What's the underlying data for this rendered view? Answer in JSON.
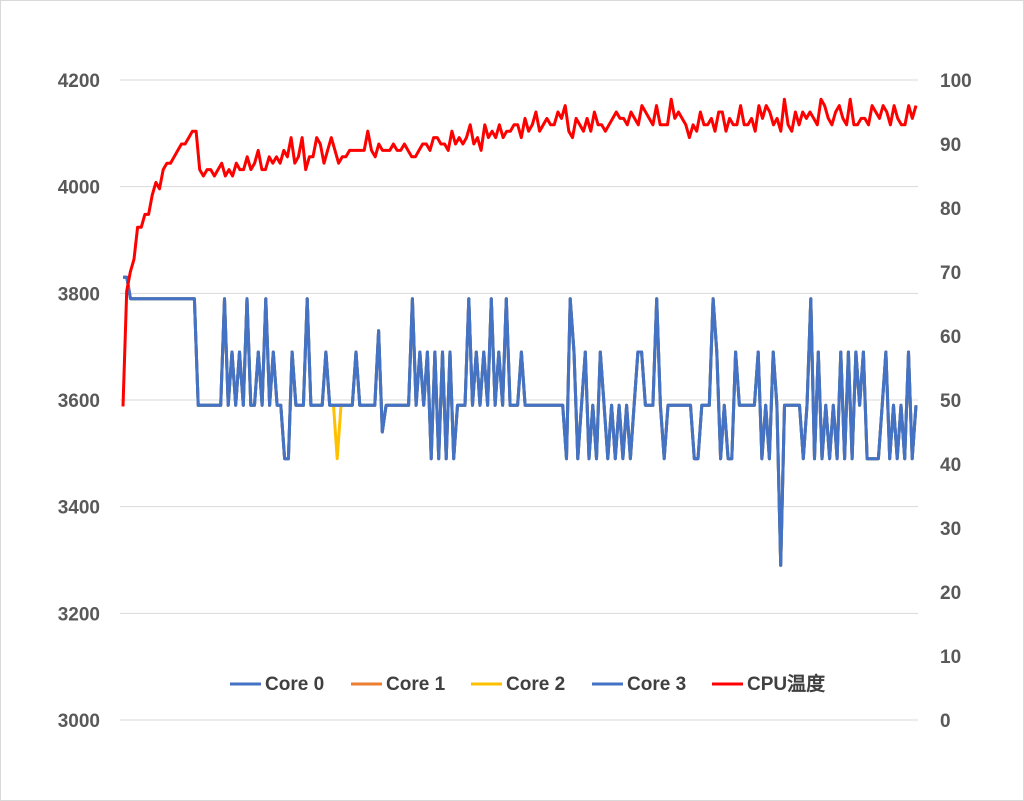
{
  "chart_data": {
    "type": "line",
    "title": "",
    "grid": true,
    "legend_position": "bottom-inside",
    "y_left": {
      "ylim": [
        3000,
        4200
      ],
      "ticks": [
        3000,
        3200,
        3400,
        3600,
        3800,
        4000,
        4200
      ],
      "tick_labels": [
        "3000",
        "3200",
        "3400",
        "3600",
        "3800",
        "4000",
        "4200"
      ]
    },
    "y_right": {
      "ylim": [
        0,
        100
      ],
      "ticks": [
        0,
        10,
        20,
        30,
        40,
        50,
        60,
        70,
        80,
        90,
        100
      ],
      "tick_labels": [
        "0",
        "10",
        "20",
        "30",
        "40",
        "50",
        "60",
        "70",
        "80",
        "90",
        "100"
      ]
    },
    "series": [
      {
        "name": "Core 0",
        "color": "#4472C4",
        "axis": "left",
        "values": [
          3830,
          3830,
          3790,
          3790,
          3790,
          3790,
          3790,
          3790,
          3790,
          3790,
          3790,
          3790,
          3790,
          3790,
          3790,
          3790,
          3790,
          3790,
          3790,
          3790,
          3590,
          3590,
          3590,
          3590,
          3590,
          3590,
          3590,
          3790,
          3590,
          3690,
          3590,
          3690,
          3590,
          3790,
          3590,
          3590,
          3690,
          3590,
          3790,
          3590,
          3690,
          3590,
          3590,
          3490,
          3490,
          3690,
          3590,
          3590,
          3590,
          3790,
          3590,
          3590,
          3590,
          3590,
          3690,
          3590,
          3590,
          3590,
          3590,
          3590,
          3590,
          3590,
          3690,
          3590,
          3590,
          3590,
          3590,
          3590,
          3730,
          3540,
          3590,
          3590,
          3590,
          3590,
          3590,
          3590,
          3590,
          3790,
          3590,
          3690,
          3590,
          3690,
          3490,
          3690,
          3490,
          3690,
          3490,
          3690,
          3490,
          3590,
          3590,
          3590,
          3790,
          3590,
          3690,
          3590,
          3690,
          3590,
          3790,
          3590,
          3690,
          3590,
          3790,
          3590,
          3590,
          3590,
          3690,
          3590,
          3590,
          3590,
          3590,
          3590,
          3590,
          3590,
          3590,
          3590,
          3590,
          3590,
          3490,
          3790,
          3690,
          3490,
          3590,
          3690,
          3490,
          3590,
          3490,
          3690,
          3590,
          3490,
          3590,
          3490,
          3590,
          3490,
          3590,
          3490,
          3590,
          3690,
          3690,
          3590,
          3590,
          3590,
          3790,
          3590,
          3490,
          3590,
          3590,
          3590,
          3590,
          3590,
          3590,
          3590,
          3490,
          3490,
          3590,
          3590,
          3590,
          3790,
          3690,
          3490,
          3590,
          3490,
          3490,
          3690,
          3590,
          3590,
          3590,
          3590,
          3590,
          3690,
          3490,
          3590,
          3490,
          3690,
          3590,
          3290,
          3590,
          3590,
          3590,
          3590,
          3590,
          3490,
          3590,
          3790,
          3490,
          3690,
          3490,
          3590,
          3490,
          3590,
          3490,
          3690,
          3490,
          3690,
          3490,
          3690,
          3590,
          3690,
          3490,
          3490,
          3490,
          3490,
          3590,
          3690,
          3490,
          3590,
          3490,
          3590,
          3490,
          3690,
          3490,
          3590
        ],
        "note": "Core 3 trace coincides with Core 0"
      },
      {
        "name": "Core 1",
        "color": "#ED7D31",
        "axis": "left",
        "values": [
          3830,
          3830,
          3790,
          3790,
          3790,
          3790,
          3790,
          3790,
          3790,
          3790,
          3790,
          3790,
          3790,
          3790,
          3790,
          3790,
          3790,
          3790,
          3790,
          3790,
          3590,
          3590,
          3590,
          3590,
          3590,
          3590,
          3590,
          3790,
          3590,
          3690,
          3590,
          3690,
          3590,
          3790,
          3590,
          3590,
          3690,
          3590,
          3790,
          3590,
          3690,
          3590,
          3590,
          3490,
          3490,
          3690,
          3590,
          3590,
          3590,
          3790,
          3590,
          3590,
          3590,
          3590,
          3690,
          3590,
          3590,
          3590,
          3590,
          3590,
          3590,
          3590,
          3690,
          3590,
          3590,
          3590,
          3590,
          3590,
          3730,
          3540,
          3590,
          3590,
          3590,
          3590,
          3590,
          3590,
          3590,
          3790,
          3590,
          3690,
          3590,
          3690,
          3490,
          3690,
          3490,
          3690,
          3490,
          3690,
          3490,
          3590,
          3590,
          3590,
          3790,
          3590,
          3690,
          3590,
          3690,
          3590,
          3790,
          3590,
          3690,
          3590,
          3790,
          3590,
          3590,
          3590,
          3690,
          3590,
          3590,
          3590,
          3590,
          3590,
          3590,
          3590,
          3590,
          3590,
          3590,
          3590,
          3490,
          3790,
          3690,
          3490,
          3590,
          3690,
          3490,
          3590,
          3490,
          3690,
          3590,
          3490,
          3590,
          3490,
          3590,
          3490,
          3590,
          3490,
          3590,
          3690,
          3690,
          3590,
          3590,
          3590,
          3790,
          3590,
          3490,
          3590,
          3590,
          3590,
          3590,
          3590,
          3590,
          3590,
          3490,
          3490,
          3590,
          3590,
          3590,
          3790,
          3690,
          3490,
          3590,
          3490,
          3490,
          3690,
          3590,
          3590,
          3590,
          3590,
          3590,
          3690,
          3490,
          3590,
          3490,
          3690,
          3590,
          3290,
          3590,
          3590,
          3590,
          3590,
          3590,
          3490,
          3590,
          3790,
          3490,
          3690,
          3490,
          3590,
          3490,
          3590,
          3490,
          3690,
          3490,
          3690,
          3490,
          3690,
          3590,
          3690,
          3490,
          3490,
          3490,
          3490,
          3590,
          3690,
          3490,
          3590,
          3490,
          3590,
          3490,
          3690,
          3490,
          3590
        ]
      },
      {
        "name": "Core 2",
        "color": "#FFC000",
        "axis": "left",
        "values": [
          3830,
          3830,
          3790,
          3790,
          3790,
          3790,
          3790,
          3790,
          3790,
          3790,
          3790,
          3790,
          3790,
          3790,
          3790,
          3790,
          3790,
          3790,
          3790,
          3790,
          3590,
          3590,
          3590,
          3590,
          3590,
          3590,
          3590,
          3790,
          3590,
          3690,
          3590,
          3690,
          3590,
          3790,
          3590,
          3590,
          3690,
          3590,
          3790,
          3590,
          3690,
          3590,
          3590,
          3490,
          3490,
          3690,
          3590,
          3590,
          3590,
          3790,
          3590,
          3590,
          3590,
          3590,
          3690,
          3590,
          3590,
          3490,
          3590,
          3590,
          3590,
          3590,
          3690,
          3590,
          3590,
          3590,
          3590,
          3590,
          3730,
          3540,
          3590,
          3590,
          3590,
          3590,
          3590,
          3590,
          3590,
          3790,
          3590,
          3690,
          3590,
          3690,
          3490,
          3690,
          3490,
          3690,
          3490,
          3690,
          3490,
          3590,
          3590,
          3590,
          3790,
          3590,
          3690,
          3590,
          3690,
          3590,
          3790,
          3590,
          3690,
          3590,
          3790,
          3590,
          3590,
          3590,
          3690,
          3590,
          3590,
          3590,
          3590,
          3590,
          3590,
          3590,
          3590,
          3590,
          3590,
          3590,
          3490,
          3790,
          3690,
          3490,
          3590,
          3690,
          3490,
          3590,
          3490,
          3690,
          3590,
          3490,
          3590,
          3490,
          3590,
          3490,
          3590,
          3490,
          3590,
          3690,
          3690,
          3590,
          3590,
          3590,
          3790,
          3590,
          3490,
          3590,
          3590,
          3590,
          3590,
          3590,
          3590,
          3590,
          3490,
          3490,
          3590,
          3590,
          3590,
          3790,
          3690,
          3490,
          3590,
          3490,
          3490,
          3690,
          3590,
          3590,
          3590,
          3590,
          3590,
          3690,
          3490,
          3590,
          3490,
          3690,
          3590,
          3290,
          3590,
          3590,
          3590,
          3590,
          3590,
          3490,
          3590,
          3790,
          3490,
          3690,
          3490,
          3590,
          3490,
          3590,
          3490,
          3690,
          3490,
          3690,
          3490,
          3690,
          3590,
          3690,
          3490,
          3490,
          3490,
          3490,
          3590,
          3690,
          3490,
          3590,
          3490,
          3590,
          3490,
          3690,
          3490,
          3590
        ]
      },
      {
        "name": "Core 3",
        "color": "#4472C4",
        "axis": "left",
        "values": [
          3830,
          3830,
          3790,
          3790,
          3790,
          3790,
          3790,
          3790,
          3790,
          3790,
          3790,
          3790,
          3790,
          3790,
          3790,
          3790,
          3790,
          3790,
          3790,
          3790,
          3590,
          3590,
          3590,
          3590,
          3590,
          3590,
          3590,
          3790,
          3590,
          3690,
          3590,
          3690,
          3590,
          3790,
          3590,
          3590,
          3690,
          3590,
          3790,
          3590,
          3690,
          3590,
          3590,
          3490,
          3490,
          3690,
          3590,
          3590,
          3590,
          3790,
          3590,
          3590,
          3590,
          3590,
          3690,
          3590,
          3590,
          3590,
          3590,
          3590,
          3590,
          3590,
          3690,
          3590,
          3590,
          3590,
          3590,
          3590,
          3730,
          3540,
          3590,
          3590,
          3590,
          3590,
          3590,
          3590,
          3590,
          3790,
          3590,
          3690,
          3590,
          3690,
          3490,
          3690,
          3490,
          3690,
          3490,
          3690,
          3490,
          3590,
          3590,
          3590,
          3790,
          3590,
          3690,
          3590,
          3690,
          3590,
          3790,
          3590,
          3690,
          3590,
          3790,
          3590,
          3590,
          3590,
          3690,
          3590,
          3590,
          3590,
          3590,
          3590,
          3590,
          3590,
          3590,
          3590,
          3590,
          3590,
          3490,
          3790,
          3690,
          3490,
          3590,
          3690,
          3490,
          3590,
          3490,
          3690,
          3590,
          3490,
          3590,
          3490,
          3590,
          3490,
          3590,
          3490,
          3590,
          3690,
          3690,
          3590,
          3590,
          3590,
          3790,
          3590,
          3490,
          3590,
          3590,
          3590,
          3590,
          3590,
          3590,
          3590,
          3490,
          3490,
          3590,
          3590,
          3590,
          3790,
          3690,
          3490,
          3590,
          3490,
          3490,
          3690,
          3590,
          3590,
          3590,
          3590,
          3590,
          3690,
          3490,
          3590,
          3490,
          3690,
          3590,
          3290,
          3590,
          3590,
          3590,
          3590,
          3590,
          3490,
          3590,
          3790,
          3490,
          3690,
          3490,
          3590,
          3490,
          3590,
          3490,
          3690,
          3490,
          3690,
          3490,
          3690,
          3590,
          3690,
          3490,
          3490,
          3490,
          3490,
          3590,
          3690,
          3490,
          3590,
          3490,
          3590,
          3490,
          3690,
          3490,
          3590
        ]
      },
      {
        "name": "CPU温度",
        "color": "#FF0000",
        "axis": "right",
        "values": [
          49,
          67,
          70,
          72,
          77,
          77,
          79,
          79,
          82,
          84,
          83,
          86,
          87,
          87,
          88,
          89,
          90,
          90,
          91,
          92,
          92,
          86,
          85,
          86,
          86,
          85,
          86,
          87,
          85,
          86,
          85,
          87,
          86,
          86,
          88,
          86,
          87,
          89,
          86,
          86,
          88,
          87,
          88,
          87,
          89,
          88,
          91,
          87,
          88,
          91,
          86,
          88,
          88,
          91,
          90,
          87,
          89,
          91,
          89,
          87,
          88,
          88,
          89,
          89,
          89,
          89,
          89,
          92,
          89,
          88,
          90,
          89,
          89,
          89,
          90,
          89,
          89,
          90,
          89,
          88,
          88,
          89,
          90,
          90,
          89,
          91,
          91,
          90,
          90,
          89,
          92,
          90,
          91,
          90,
          91,
          93,
          90,
          91,
          89,
          93,
          91,
          92,
          91,
          93,
          91,
          92,
          92,
          93,
          93,
          91,
          94,
          92,
          93,
          95,
          92,
          93,
          94,
          93,
          93,
          95,
          94,
          96,
          92,
          91,
          94,
          93,
          92,
          94,
          92,
          95,
          93,
          93,
          92,
          93,
          94,
          95,
          94,
          94,
          93,
          95,
          94,
          93,
          96,
          95,
          94,
          93,
          96,
          93,
          93,
          93,
          97,
          94,
          95,
          94,
          93,
          91,
          93,
          92,
          95,
          93,
          93,
          94,
          92,
          95,
          95,
          92,
          94,
          93,
          93,
          96,
          93,
          93,
          94,
          92,
          96,
          94,
          96,
          95,
          93,
          94,
          92,
          97,
          93,
          92,
          95,
          93,
          95,
          94,
          95,
          94,
          93,
          97,
          96,
          94,
          93,
          95,
          96,
          94,
          93,
          97,
          93,
          93,
          94,
          94,
          93,
          96,
          95,
          94,
          96,
          95,
          93,
          96,
          94,
          93,
          93,
          96,
          94,
          96
        ]
      }
    ]
  }
}
